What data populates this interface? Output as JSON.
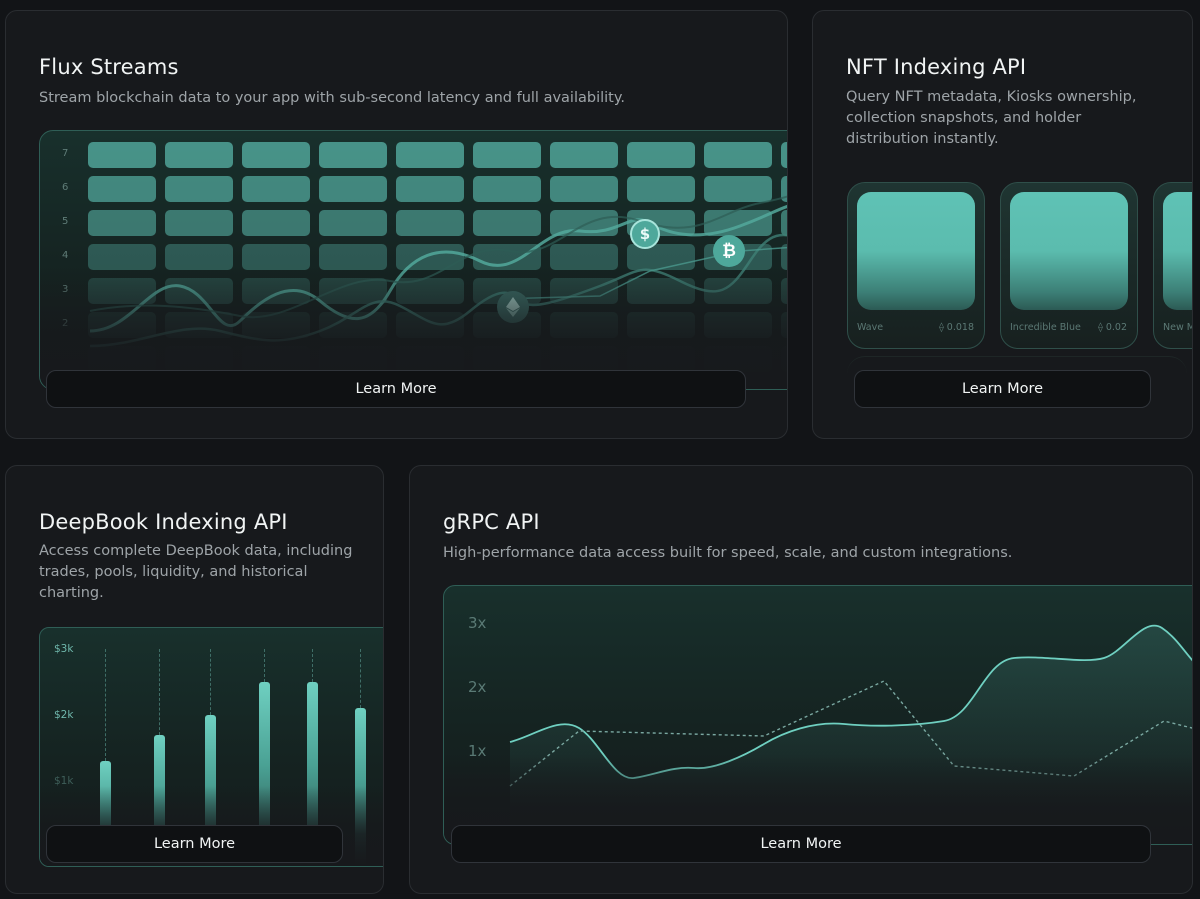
{
  "cards": {
    "flux": {
      "title": "Flux Streams",
      "description": "Stream blockchain data to your app with sub-second latency and full availability.",
      "button": "Learn More",
      "y_ticks": [
        "7",
        "6",
        "5",
        "4",
        "3",
        "2"
      ],
      "coin_icons": [
        "usdc-icon",
        "bitcoin-icon",
        "ethereum-icon"
      ]
    },
    "nft": {
      "title": "NFT Indexing API",
      "description_lines": [
        "Query NFT metadata, Kiosks ownership,",
        "collection snapshots, and holder",
        "distribution instantly."
      ],
      "button": "Learn More",
      "tiles": [
        {
          "name": "Wave",
          "price": "0.018"
        },
        {
          "name": "Incredible Blue",
          "price": "0.02"
        },
        {
          "name": "New M",
          "price": ""
        }
      ]
    },
    "deepbook": {
      "title": "DeepBook Indexing API",
      "description_lines": [
        "Access complete DeepBook data, including",
        "trades, pools, liquidity, and historical",
        "charting."
      ],
      "button": "Learn More",
      "y_ticks": [
        "$3k",
        "$2k",
        "$1k"
      ],
      "bar_values": [
        1.3,
        1.7,
        2.0,
        2.5,
        2.5,
        2.1
      ]
    },
    "grpc": {
      "title": "gRPC API",
      "description": "High-performance data access built for speed, scale, and custom integrations.",
      "button": "Learn More",
      "y_ticks": [
        "3x",
        "2x",
        "1x"
      ]
    }
  },
  "colors": {
    "accent": "#5fc2b5",
    "background": "#121417",
    "card": "#17191c"
  }
}
